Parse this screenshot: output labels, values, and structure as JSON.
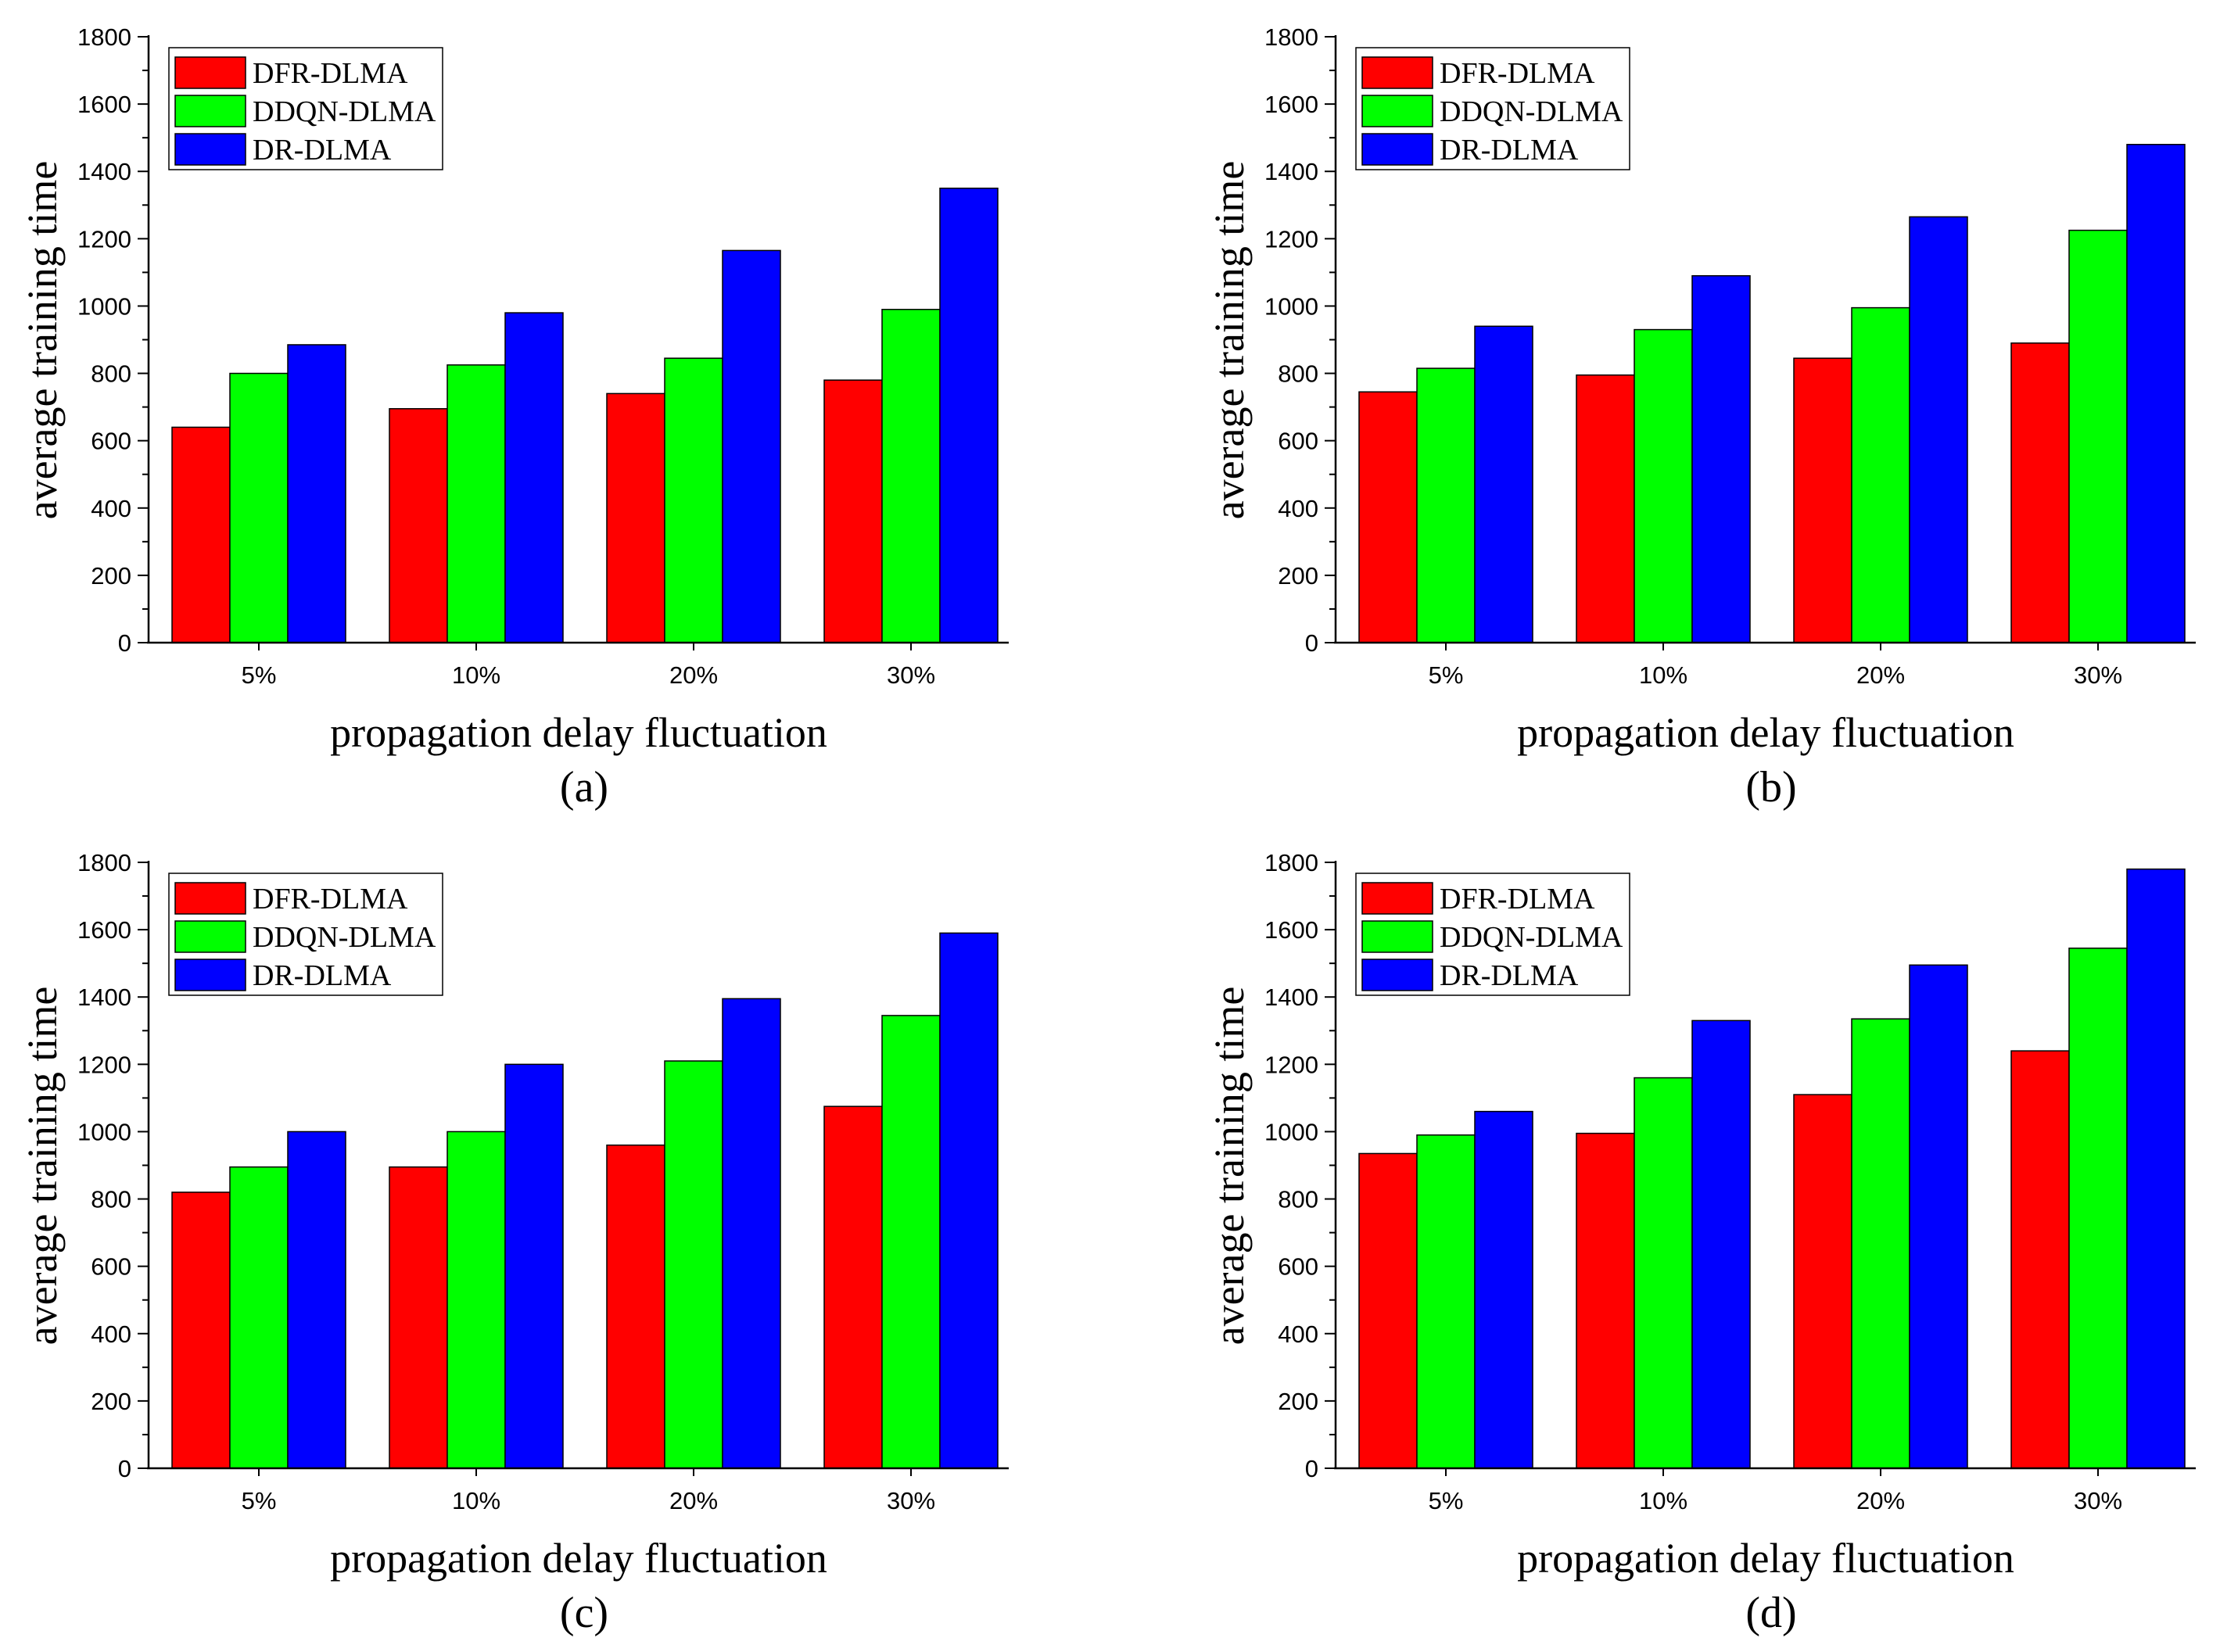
{
  "colors": {
    "DFR-DLMA": "#ff0000",
    "DDQN-DLMA": "#00ff00",
    "DR-DLMA": "#0000ff"
  },
  "chart_data": [
    {
      "type": "bar",
      "panel": "(a)",
      "categories": [
        "5%",
        "10%",
        "20%",
        "30%"
      ],
      "series": [
        {
          "name": "DFR-DLMA",
          "values": [
            640,
            695,
            740,
            780
          ]
        },
        {
          "name": "DDQN-DLMA",
          "values": [
            800,
            825,
            845,
            990
          ]
        },
        {
          "name": "DR-DLMA",
          "values": [
            885,
            980,
            1165,
            1350
          ]
        }
      ],
      "xlabel": "propagation delay fluctuation",
      "ylabel": "average training time",
      "ylim": [
        0,
        1800
      ],
      "yticks": [
        0,
        200,
        400,
        600,
        800,
        1000,
        1200,
        1400,
        1600,
        1800
      ],
      "legend": "top-left"
    },
    {
      "type": "bar",
      "panel": "(b)",
      "categories": [
        "5%",
        "10%",
        "20%",
        "30%"
      ],
      "series": [
        {
          "name": "DFR-DLMA",
          "values": [
            745,
            795,
            845,
            890
          ]
        },
        {
          "name": "DDQN-DLMA",
          "values": [
            815,
            930,
            995,
            1225
          ]
        },
        {
          "name": "DR-DLMA",
          "values": [
            940,
            1090,
            1265,
            1480
          ]
        }
      ],
      "xlabel": "propagation delay fluctuation",
      "ylabel": "average training time",
      "ylim": [
        0,
        1800
      ],
      "yticks": [
        0,
        200,
        400,
        600,
        800,
        1000,
        1200,
        1400,
        1600,
        1800
      ],
      "legend": "top-left"
    },
    {
      "type": "bar",
      "panel": "(c)",
      "categories": [
        "5%",
        "10%",
        "20%",
        "30%"
      ],
      "series": [
        {
          "name": "DFR-DLMA",
          "values": [
            820,
            895,
            960,
            1075
          ]
        },
        {
          "name": "DDQN-DLMA",
          "values": [
            895,
            1000,
            1210,
            1345
          ]
        },
        {
          "name": "DR-DLMA",
          "values": [
            1000,
            1200,
            1395,
            1590
          ]
        }
      ],
      "xlabel": "propagation delay fluctuation",
      "ylabel": "average training time",
      "ylim": [
        0,
        1800
      ],
      "yticks": [
        0,
        200,
        400,
        600,
        800,
        1000,
        1200,
        1400,
        1600,
        1800
      ],
      "legend": "top-left"
    },
    {
      "type": "bar",
      "panel": "(d)",
      "categories": [
        "5%",
        "10%",
        "20%",
        "30%"
      ],
      "series": [
        {
          "name": "DFR-DLMA",
          "values": [
            935,
            995,
            1110,
            1240
          ]
        },
        {
          "name": "DDQN-DLMA",
          "values": [
            990,
            1160,
            1335,
            1545
          ]
        },
        {
          "name": "DR-DLMA",
          "values": [
            1060,
            1330,
            1495,
            1780
          ]
        }
      ],
      "xlabel": "propagation delay fluctuation",
      "ylabel": "average training time",
      "ylim": [
        0,
        1800
      ],
      "yticks": [
        0,
        200,
        400,
        600,
        800,
        1000,
        1200,
        1400,
        1600,
        1800
      ],
      "legend": "top-left"
    }
  ]
}
